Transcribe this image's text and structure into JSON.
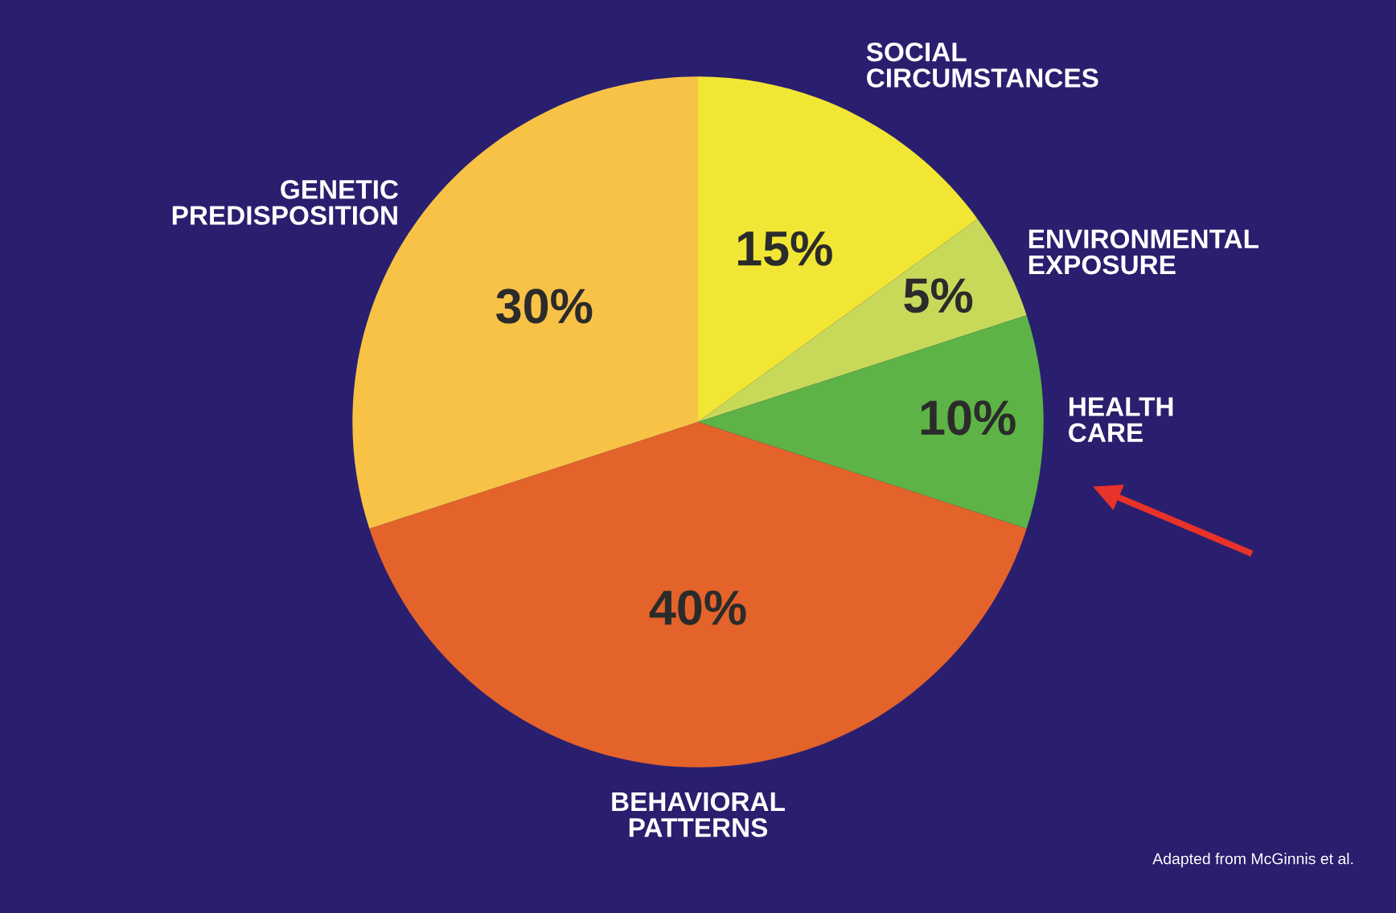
{
  "chart_data": {
    "type": "pie",
    "categories": [
      "SOCIAL\nCIRCUMSTANCES",
      "ENVIRONMENTAL\nEXPOSURE",
      "HEALTH\nCARE",
      "BEHAVIORAL\nPATTERNS",
      "GENETIC\nPREDISPOSITION"
    ],
    "values": [
      15,
      5,
      10,
      40,
      30
    ],
    "colors": [
      "#f2e634",
      "#c8d95a",
      "#5db345",
      "#e4632a",
      "#f8c246"
    ],
    "value_labels": [
      "15%",
      "5%",
      "10%",
      "40%",
      "30%"
    ],
    "annotations": [
      "Adapted from McGinnis et al."
    ],
    "legend": false
  }
}
